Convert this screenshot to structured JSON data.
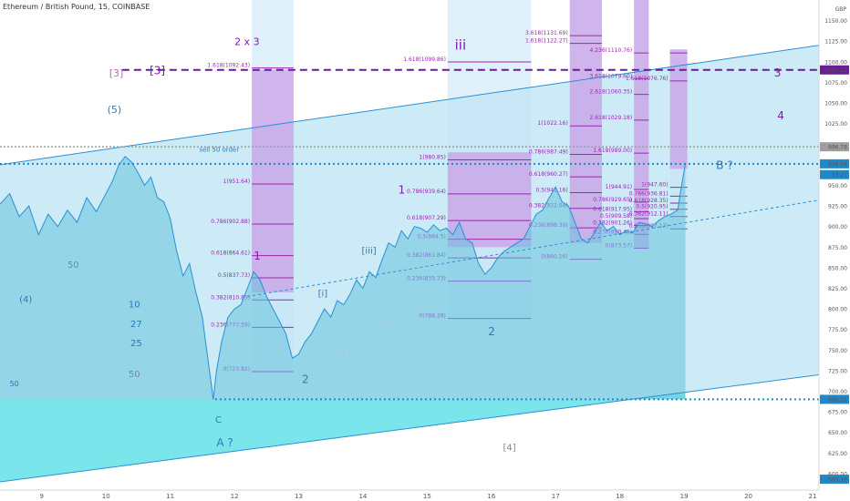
{
  "header": {
    "symbol": "Ethereum / British Pound, 15, COINBASE",
    "currency": "GBP"
  },
  "colors": {
    "channel_fill": "#8fd3ee",
    "lower_fill": "#5fe3e6",
    "price_fill": "#66c3dc",
    "price_line": "#2b8fd4",
    "fib_line": "#9c27b0",
    "fib_box": "#c99be6",
    "blue_zone": "#c6e3f6",
    "dash_purple": "#6a1b9a",
    "dotted_blue": "#1e88c8",
    "label_purple": "#7b1fa2",
    "label_blue": "#2d79b5",
    "label_gray": "#7a8a95"
  },
  "chart_data": {
    "type": "line",
    "title": "Ethereum / British Pound, 15, COINBASE",
    "xlabel": "",
    "ylabel": "GBP",
    "x_ticks": [
      "9",
      "10",
      "11",
      "12",
      "13",
      "14",
      "15",
      "16",
      "17",
      "18",
      "19",
      "20",
      "21"
    ],
    "y_ticks": [
      1150,
      1125,
      1100,
      1075,
      1050,
      1025,
      1000,
      975,
      950,
      925,
      900,
      875,
      850,
      825,
      800,
      775,
      750,
      725,
      700,
      675,
      650,
      625,
      600
    ],
    "ylim": [
      580,
      1175
    ],
    "xlim": [
      8.35,
      21.1
    ],
    "series": [
      {
        "points": [
          [
            8.35,
            927
          ],
          [
            8.5,
            940
          ],
          [
            8.65,
            912
          ],
          [
            8.8,
            925
          ],
          [
            8.95,
            890
          ],
          [
            9.1,
            915
          ],
          [
            9.25,
            900
          ],
          [
            9.4,
            920
          ],
          [
            9.55,
            905
          ],
          [
            9.7,
            935
          ],
          [
            9.85,
            918
          ],
          [
            10.0,
            940
          ],
          [
            10.1,
            955
          ],
          [
            10.2,
            975
          ],
          [
            10.3,
            985
          ],
          [
            10.4,
            978
          ],
          [
            10.5,
            965
          ],
          [
            10.6,
            950
          ],
          [
            10.7,
            960
          ],
          [
            10.8,
            935
          ],
          [
            10.9,
            930
          ],
          [
            11.0,
            910
          ],
          [
            11.1,
            870
          ],
          [
            11.2,
            840
          ],
          [
            11.3,
            855
          ],
          [
            11.4,
            820
          ],
          [
            11.5,
            790
          ],
          [
            11.55,
            760
          ],
          [
            11.62,
            720
          ],
          [
            11.67,
            690
          ],
          [
            11.72,
            725
          ],
          [
            11.8,
            760
          ],
          [
            11.9,
            790
          ],
          [
            12.0,
            800
          ],
          [
            12.1,
            805
          ],
          [
            12.2,
            825
          ],
          [
            12.3,
            845
          ],
          [
            12.4,
            835
          ],
          [
            12.5,
            815
          ],
          [
            12.6,
            800
          ],
          [
            12.7,
            785
          ],
          [
            12.8,
            770
          ],
          [
            12.9,
            740
          ],
          [
            13.0,
            745
          ],
          [
            13.1,
            760
          ],
          [
            13.2,
            770
          ],
          [
            13.3,
            785
          ],
          [
            13.4,
            800
          ],
          [
            13.5,
            790
          ],
          [
            13.6,
            810
          ],
          [
            13.7,
            805
          ],
          [
            13.8,
            818
          ],
          [
            13.9,
            835
          ],
          [
            14.0,
            825
          ],
          [
            14.1,
            845
          ],
          [
            14.2,
            838
          ],
          [
            14.3,
            860
          ],
          [
            14.4,
            880
          ],
          [
            14.5,
            875
          ],
          [
            14.6,
            895
          ],
          [
            14.7,
            885
          ],
          [
            14.8,
            900
          ],
          [
            14.9,
            898
          ],
          [
            15.0,
            893
          ],
          [
            15.1,
            902
          ],
          [
            15.2,
            895
          ],
          [
            15.3,
            898
          ],
          [
            15.4,
            890
          ],
          [
            15.5,
            905
          ],
          [
            15.6,
            885
          ],
          [
            15.7,
            880
          ],
          [
            15.8,
            855
          ],
          [
            15.9,
            842
          ],
          [
            16.0,
            850
          ],
          [
            16.1,
            862
          ],
          [
            16.2,
            870
          ],
          [
            16.3,
            875
          ],
          [
            16.4,
            880
          ],
          [
            16.5,
            885
          ],
          [
            16.6,
            900
          ],
          [
            16.7,
            915
          ],
          [
            16.8,
            920
          ],
          [
            16.9,
            935
          ],
          [
            17.0,
            948
          ],
          [
            17.1,
            930
          ],
          [
            17.2,
            925
          ],
          [
            17.3,
            905
          ],
          [
            17.4,
            885
          ],
          [
            17.5,
            880
          ],
          [
            17.6,
            892
          ],
          [
            17.7,
            905
          ],
          [
            17.8,
            895
          ],
          [
            17.9,
            900
          ],
          [
            18.0,
            890
          ],
          [
            18.1,
            895
          ],
          [
            18.2,
            892
          ],
          [
            18.3,
            905
          ],
          [
            18.4,
            903
          ],
          [
            18.5,
            900
          ],
          [
            18.6,
            907
          ],
          [
            18.7,
            912
          ],
          [
            18.8,
            915
          ],
          [
            18.9,
            920
          ],
          [
            18.95,
            945
          ],
          [
            19.02,
            976
          ]
        ]
      }
    ],
    "price_labels": [
      {
        "value": 1150,
        "label": "1150.00"
      },
      {
        "value": 1125,
        "label": "1125.00"
      },
      {
        "value": 1100,
        "label": "1100.00"
      },
      {
        "value": 1090.12,
        "label": "1090.12",
        "bg": "#6a1b9a"
      },
      {
        "value": 1075,
        "label": "1075.00"
      },
      {
        "value": 1050,
        "label": "1050.00"
      },
      {
        "value": 1025,
        "label": "1025.00"
      },
      {
        "value": 996.78,
        "label": "996.78",
        "bg": "#9e9e9e"
      },
      {
        "value": 976.09,
        "label": "976.09",
        "bg": "#1e88c8"
      },
      {
        "value": 963,
        "label": "13:27",
        "bg": "#1e88c8"
      },
      {
        "value": 950,
        "label": "950.00"
      },
      {
        "value": 925,
        "label": "925.00"
      },
      {
        "value": 900,
        "label": "900.00"
      },
      {
        "value": 875,
        "label": "875.00"
      },
      {
        "value": 850,
        "label": "850.00"
      },
      {
        "value": 825,
        "label": "825.00"
      },
      {
        "value": 800,
        "label": "800.00"
      },
      {
        "value": 775,
        "label": "775.00"
      },
      {
        "value": 750,
        "label": "750.00"
      },
      {
        "value": 725,
        "label": "725.00"
      },
      {
        "value": 700,
        "label": "700.00"
      },
      {
        "value": 690.15,
        "label": "690.15",
        "bg": "#1e88c8"
      },
      {
        "value": 675,
        "label": "675.00"
      },
      {
        "value": 650,
        "label": "650.00"
      },
      {
        "value": 625,
        "label": "625.00"
      },
      {
        "value": 600,
        "label": "600.00"
      },
      {
        "value": 593.19,
        "label": "593.19",
        "bg": "#1e88c8"
      }
    ],
    "hlines": [
      {
        "value": 1090.12,
        "x0": 10.25,
        "x1": 21.1,
        "style": "dash-purple"
      },
      {
        "value": 996.78,
        "x0": 8.35,
        "x1": 21.1,
        "style": "dotted-gray"
      },
      {
        "value": 976.09,
        "x0": 8.35,
        "x1": 21.1,
        "style": "dotted-blue"
      },
      {
        "value": 690.15,
        "x0": 11.7,
        "x1": 21.1,
        "style": "dotted-blue"
      }
    ],
    "channels": [
      {
        "name": "upper",
        "x0": 8.35,
        "y0": 975,
        "x1": 21.1,
        "y1": 1120
      },
      {
        "name": "lower",
        "x0": 8.35,
        "y0": 590,
        "x1": 21.1,
        "y1": 720
      },
      {
        "name": "mid",
        "x0": 12.2,
        "y0": 815,
        "x1": 21.1,
        "y1": 932
      }
    ],
    "fib_tools": [
      {
        "x0": 12.27,
        "x1": 12.92,
        "top": 1175,
        "bottom": 723,
        "shade_top": 1090,
        "shade_bottom": 820,
        "levels": [
          {
            "value": 1092.43,
            "label": "1.618(1092.43)"
          },
          {
            "value": 951.64,
            "label": "1(951.64)"
          },
          {
            "value": 902.88,
            "label": "0.786(902.88)"
          },
          {
            "value": 864.61,
            "label": "0.618(864.61)"
          },
          {
            "value": 837.73,
            "label": "0.5(837.73)"
          },
          {
            "value": 810.85,
            "label": "0.382(810.85)"
          },
          {
            "value": 777.59,
            "label": "0.236(777.59)"
          },
          {
            "value": 723.82,
            "label": "0(723.82)"
          }
        ]
      },
      {
        "x0": 15.32,
        "x1": 16.62,
        "top": 1175,
        "bottom": 788,
        "shade_top": 990,
        "shade_bottom": 875,
        "levels": [
          {
            "value": 1099.86,
            "label": "1.618(1099.86)"
          },
          {
            "value": 980.85,
            "label": "1(980.85)"
          },
          {
            "value": 939.64,
            "label": "0.786(939.64)"
          },
          {
            "value": 907.29,
            "label": "0.618(907.29)"
          },
          {
            "value": 884.5,
            "label": "0.5(884.5)"
          },
          {
            "value": 861.84,
            "label": "0.382(861.84)"
          },
          {
            "value": 833.73,
            "label": "0.236(833.73)"
          },
          {
            "value": 788.28,
            "label": "0(788.28)"
          }
        ]
      },
      {
        "x0": 17.22,
        "x1": 17.72,
        "top": 1175,
        "bottom": 860,
        "shade_top": 1175,
        "shade_bottom": 880,
        "levels": [
          {
            "value": 1175.78,
            "label": "4.236(1175.78)"
          },
          {
            "value": 1131.69,
            "label": "3.618(1131.69)"
          },
          {
            "value": 1122.27,
            "label": "1.618(1122.27)"
          },
          {
            "value": 1022.16,
            "label": "1(1022.16)"
          },
          {
            "value": 987.49,
            "label": "0.786(987.49)"
          },
          {
            "value": 960.27,
            "label": "0.618(960.27)"
          },
          {
            "value": 941.16,
            "label": "0.5(941.16)"
          },
          {
            "value": 922.04,
            "label": "0.382(922.04)"
          },
          {
            "value": 898.39,
            "label": "0.236(898.39)"
          },
          {
            "value": 860.16,
            "label": "0(860.16)"
          }
        ]
      },
      {
        "x0": 18.22,
        "x1": 18.45,
        "top": 1175,
        "bottom": 873,
        "shade_top": 1175,
        "shade_bottom": 873,
        "levels": [
          {
            "value": 1110.76,
            "label": "4.236(1110.76)"
          },
          {
            "value": 1079.6,
            "label": "3.618(1079.60)"
          },
          {
            "value": 1060.35,
            "label": "2.618(1060.35)"
          },
          {
            "value": 1029.18,
            "label": "2.618(1029.18)"
          },
          {
            "value": 989.0,
            "label": "1.618(989.00)"
          },
          {
            "value": 944.91,
            "label": "1(944.91)"
          },
          {
            "value": 929.65,
            "label": "0.786(929.65)"
          },
          {
            "value": 917.95,
            "label": "0.618(917.95)"
          },
          {
            "value": 909.58,
            "label": "0.5(909.58)"
          },
          {
            "value": 901.26,
            "label": "0.382(901.26)"
          },
          {
            "value": 890.45,
            "label": "0.236(890.45)"
          },
          {
            "value": 873.57,
            "label": "0(873.57)"
          }
        ]
      },
      {
        "x0": 18.78,
        "x1": 19.05,
        "top": 1115,
        "bottom": 895,
        "shade_top": 1115,
        "shade_bottom": 970,
        "levels": [
          {
            "value": 1110.76,
            "label": ""
          },
          {
            "value": 1076.76,
            "label": "1.618(1076.76)"
          },
          {
            "value": 947.6,
            "label": "1(947.60)"
          },
          {
            "value": 936.81,
            "label": "0.786(936.81)"
          },
          {
            "value": 928.35,
            "label": "0.618(928.35)"
          },
          {
            "value": 920.95,
            "label": "0.5(920.95)"
          },
          {
            "value": 912.11,
            "label": "0.382(912.11)"
          },
          {
            "value": 897.17,
            "label": "0.236(897.17)"
          }
        ]
      }
    ],
    "annotations": [
      {
        "text": "2 x 3",
        "x": 12.0,
        "y": 1120,
        "color": "#7b1fa2",
        "size": 11
      },
      {
        "text": "[3]",
        "x": 10.05,
        "y": 1082,
        "color": "#ba68c8",
        "size": 11
      },
      {
        "text": "[3]",
        "x": 10.68,
        "y": 1085,
        "color": "#7b1fa2",
        "size": 12
      },
      {
        "text": "(5)",
        "x": 10.02,
        "y": 1038,
        "color": "#2d79b5",
        "size": 11
      },
      {
        "text": "iii",
        "x": 15.43,
        "y": 1115,
        "color": "#7b1fa2",
        "size": 15
      },
      {
        "text": "3",
        "x": 20.4,
        "y": 1082,
        "color": "#7b1fa2",
        "size": 12
      },
      {
        "text": "4",
        "x": 20.45,
        "y": 1030,
        "color": "#7b1fa2",
        "size": 12
      },
      {
        "text": "B ?",
        "x": 19.5,
        "y": 970,
        "color": "#2d79b5",
        "size": 12
      },
      {
        "text": "sell 50 order",
        "x": 11.45,
        "y": 991,
        "color": "#2d79b5",
        "size": 7
      },
      {
        "text": "1",
        "x": 14.55,
        "y": 940,
        "color": "#7b1fa2",
        "size": 12
      },
      {
        "text": "1",
        "x": 12.3,
        "y": 860,
        "color": "#7b1fa2",
        "size": 12
      },
      {
        "text": "[iii]",
        "x": 13.98,
        "y": 867,
        "color": "#2d79b5",
        "size": 10
      },
      {
        "text": "[i]",
        "x": 13.3,
        "y": 815,
        "color": "#2d79b5",
        "size": 10
      },
      {
        "text": "[iv]",
        "x": 14.27,
        "y": 780,
        "color": "#a3c8e0",
        "size": 10
      },
      {
        "text": "[ii]",
        "x": 13.68,
        "y": 745,
        "color": "#a3c8e0",
        "size": 10
      },
      {
        "text": "2",
        "x": 13.05,
        "y": 710,
        "color": "#2d79b5",
        "size": 12
      },
      {
        "text": "2",
        "x": 15.95,
        "y": 768,
        "color": "#2d79b5",
        "size": 12
      },
      {
        "text": "50",
        "x": 9.4,
        "y": 850,
        "color": "#7a8a95",
        "size": 10
      },
      {
        "text": "(4)",
        "x": 8.65,
        "y": 808,
        "color": "#2d79b5",
        "size": 10
      },
      {
        "text": "10",
        "x": 10.35,
        "y": 802,
        "color": "#2d79b5",
        "size": 10
      },
      {
        "text": "27",
        "x": 10.38,
        "y": 778,
        "color": "#2d79b5",
        "size": 10
      },
      {
        "text": "25",
        "x": 10.38,
        "y": 755,
        "color": "#2d79b5",
        "size": 10
      },
      {
        "text": "50",
        "x": 10.35,
        "y": 717,
        "color": "#7a8a95",
        "size": 10
      },
      {
        "text": "50",
        "x": 8.5,
        "y": 706,
        "color": "#2d79b5",
        "size": 8
      },
      {
        "text": "C",
        "x": 11.7,
        "y": 662,
        "color": "#2d79b5",
        "size": 10
      },
      {
        "text": "A ?",
        "x": 11.72,
        "y": 633,
        "color": "#2d79b5",
        "size": 12
      },
      {
        "text": "[4]",
        "x": 16.18,
        "y": 628,
        "color": "#7a8a95",
        "size": 10
      }
    ],
    "grid": false,
    "legend": "none"
  }
}
